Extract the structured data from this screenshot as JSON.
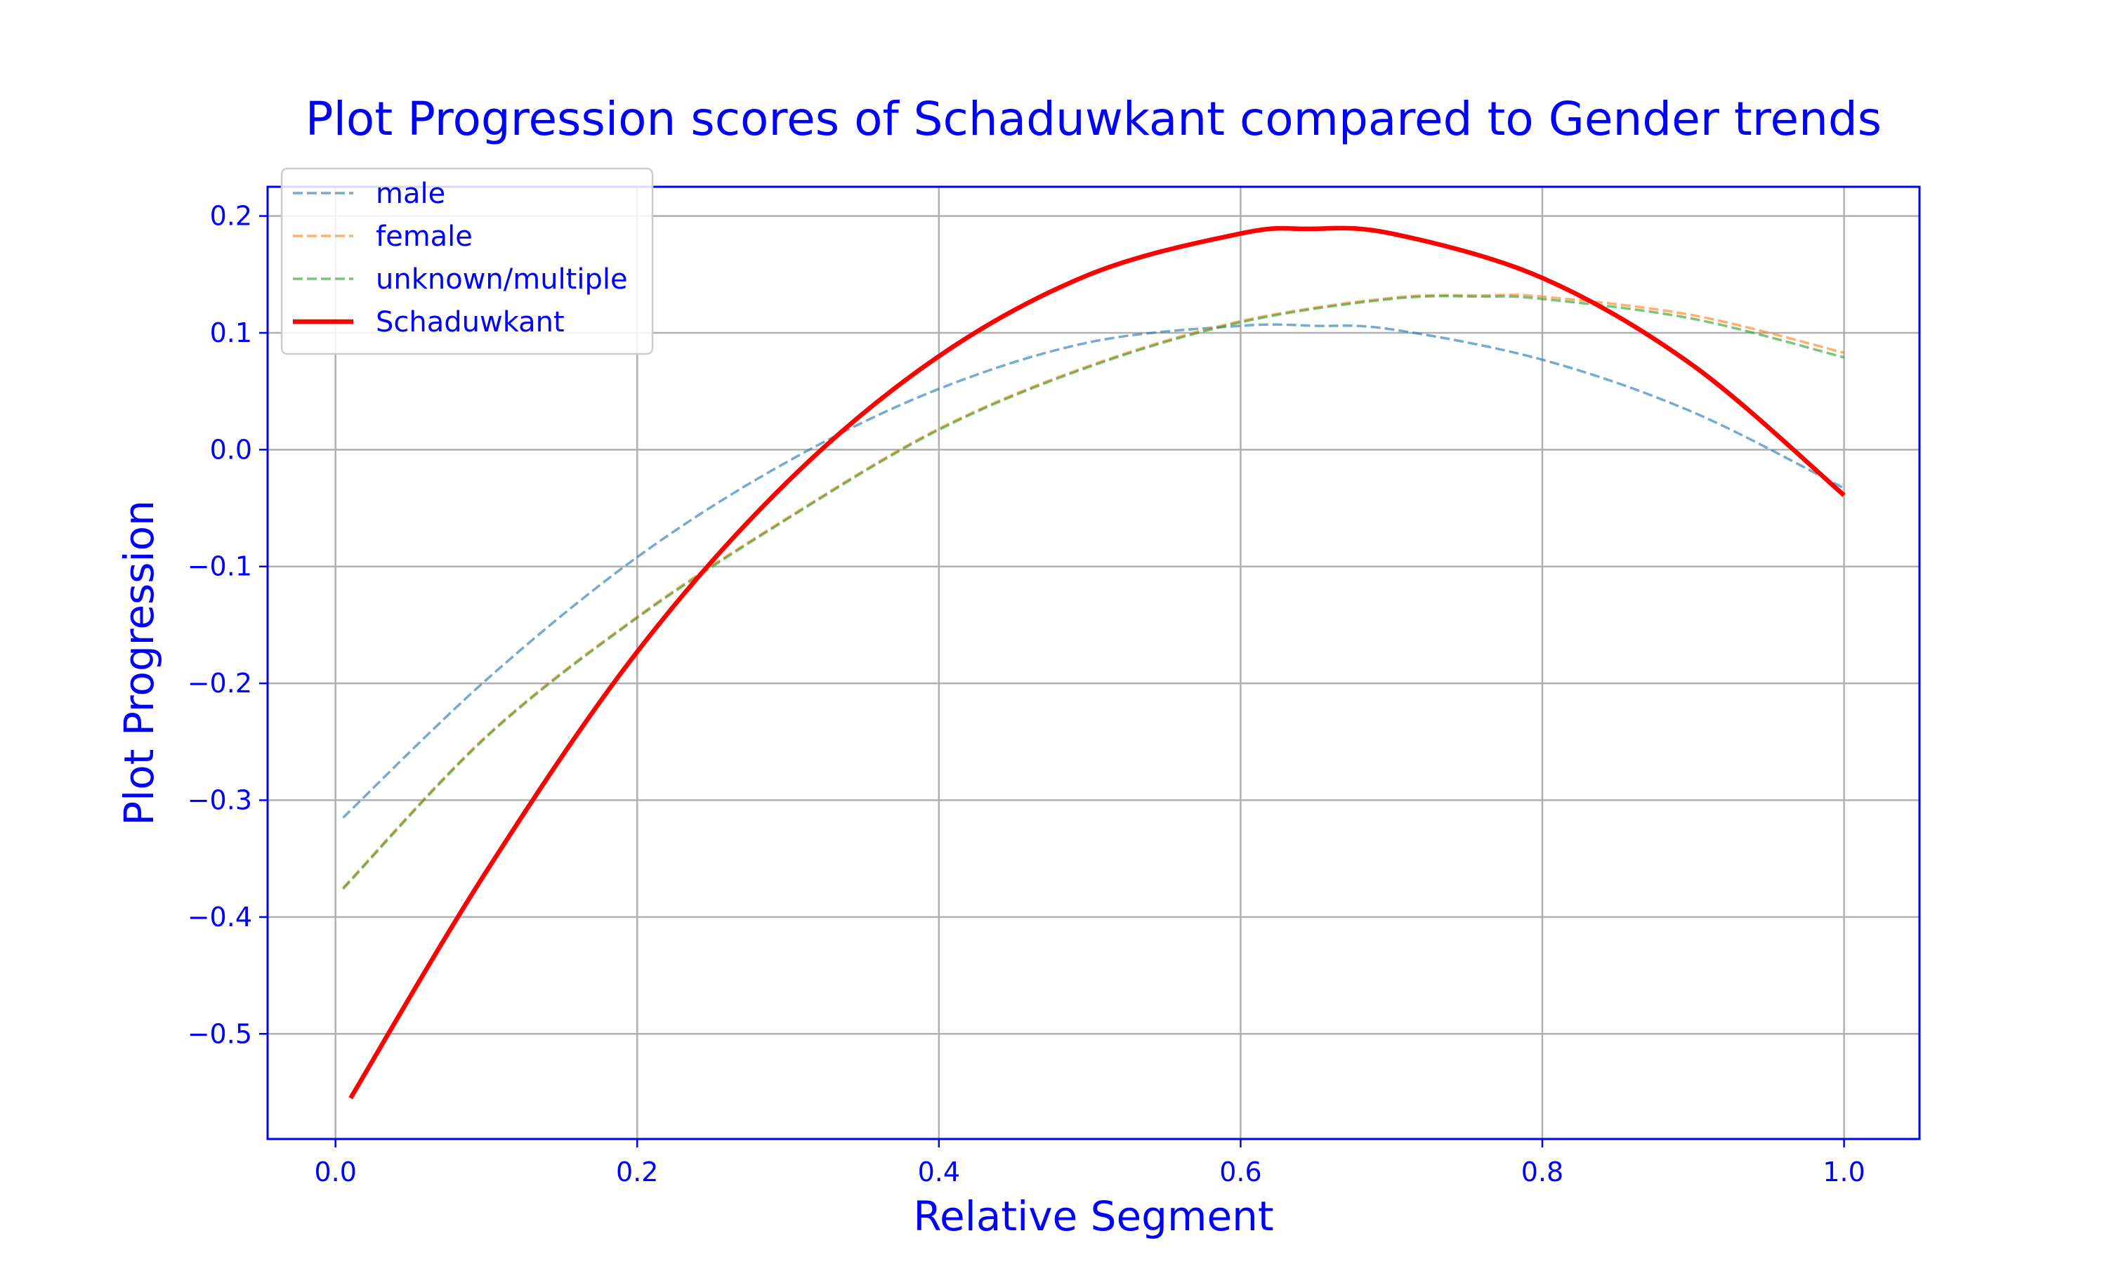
{
  "chart_data": {
    "type": "line",
    "title": "Plot Progression scores of Schaduwkant compared to Gender trends",
    "xlabel": "Relative Segment",
    "ylabel": "Plot Progression",
    "xlim": [
      -0.045,
      1.05
    ],
    "ylim": [
      -0.59,
      0.225
    ],
    "xticks": [
      0.0,
      0.2,
      0.4,
      0.6,
      0.8,
      1.0
    ],
    "xtick_labels": [
      "0.0",
      "0.2",
      "0.4",
      "0.6",
      "0.8",
      "1.0"
    ],
    "yticks": [
      -0.5,
      -0.4,
      -0.3,
      -0.2,
      -0.1,
      0.0,
      0.1,
      0.2
    ],
    "ytick_labels": [
      "−0.5",
      "−0.4",
      "−0.3",
      "−0.2",
      "−0.1",
      "0.0",
      "0.1",
      "0.2"
    ],
    "grid": true,
    "legend_position": "top-left",
    "series": [
      {
        "name": "male",
        "style": "dashed",
        "color": "#1f77b4",
        "x": [
          0.005,
          0.1,
          0.2,
          0.3,
          0.4,
          0.5,
          0.6,
          0.65,
          0.7,
          0.8,
          0.9,
          1.0
        ],
        "y": [
          -0.315,
          -0.197,
          -0.092,
          -0.01,
          0.052,
          0.092,
          0.106,
          0.106,
          0.103,
          0.077,
          0.032,
          -0.033
        ]
      },
      {
        "name": "female",
        "style": "dashed",
        "color": "#ff7f0e",
        "x": [
          0.005,
          0.1,
          0.2,
          0.3,
          0.4,
          0.5,
          0.6,
          0.7,
          0.76,
          0.8,
          0.9,
          1.0
        ],
        "y": [
          -0.375,
          -0.245,
          -0.143,
          -0.058,
          0.018,
          0.072,
          0.11,
          0.13,
          0.132,
          0.131,
          0.115,
          0.083
        ]
      },
      {
        "name": "unknown/multiple",
        "style": "dashed",
        "color": "#2ca02c",
        "x": [
          0.005,
          0.1,
          0.2,
          0.3,
          0.4,
          0.5,
          0.6,
          0.7,
          0.76,
          0.8,
          0.9,
          1.0
        ],
        "y": [
          -0.376,
          -0.246,
          -0.144,
          -0.059,
          0.017,
          0.071,
          0.109,
          0.129,
          0.131,
          0.129,
          0.112,
          0.079
        ]
      },
      {
        "name": "Schaduwkant",
        "style": "solid",
        "color": "#ff0000",
        "x": [
          0.01,
          0.1,
          0.2,
          0.3,
          0.4,
          0.5,
          0.6,
          0.645,
          0.7,
          0.8,
          0.9,
          1.0
        ],
        "y": [
          -0.555,
          -0.361,
          -0.173,
          -0.027,
          0.08,
          0.15,
          0.185,
          0.189,
          0.185,
          0.147,
          0.072,
          -0.039
        ]
      }
    ]
  }
}
